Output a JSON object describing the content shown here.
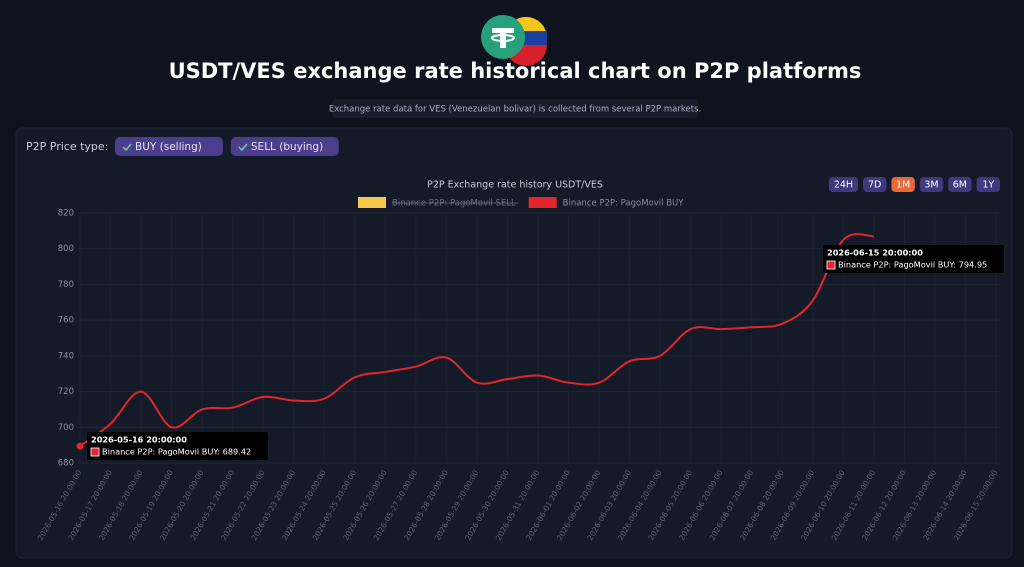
{
  "header": {
    "title": "USDT/VES exchange rate historical chart on P2P platforms",
    "subtitle": "Exchange rate data for VES (Venezuelan bolivar) is collected from several P2P markets."
  },
  "price_type": {
    "label": "P2P Price type:",
    "buttons": [
      "BUY (selling)",
      "SELL (buying)"
    ]
  },
  "ranges": {
    "buttons": [
      "24H",
      "7D",
      "1M",
      "3M",
      "6M",
      "1Y"
    ],
    "active": 2
  },
  "chart_data": {
    "type": "line",
    "title": "P2P Exchange rate history USDT/VES",
    "x": [
      "2026-05-16 20:00:00",
      "2026-05-17 20:00:00",
      "2026-05-18 20:00:00",
      "2026-05-19 20:00:00",
      "2026-05-20 20:00:00",
      "2026-05-21 20:00:00",
      "2026-05-22 20:00:00",
      "2026-05-23 20:00:00",
      "2026-05-24 20:00:00",
      "2026-05-25 20:00:00",
      "2026-05-26 20:00:00",
      "2026-05-27 20:00:00",
      "2026-05-28 20:00:00",
      "2026-05-29 20:00:00",
      "2026-05-30 20:00:00",
      "2026-05-31 20:00:00",
      "2026-06-01 20:00:00",
      "2026-06-02 20:00:00",
      "2026-06-03 20:00:00",
      "2026-06-04 20:00:00",
      "2026-06-05 20:00:00",
      "2026-06-06 20:00:00",
      "2026-06-07 20:00:00",
      "2026-06-08 20:00:00",
      "2026-06-09 20:00:00",
      "2026-06-10 20:00:00",
      "2026-06-11 20:00:00",
      "2026-06-12 20:00:00",
      "2026-06-13 20:00:00",
      "2026-06-14 20:00:00",
      "2026-06-15 20:00:00"
    ],
    "series": [
      {
        "name": "Binance P2P: PagoMovil SELL",
        "color": "#f7c94a",
        "hidden": true
      },
      {
        "name": "Binance P2P: PagoMovil BUY",
        "color": "#e3262e",
        "values": [
          689.42,
          702,
          720,
          700,
          710,
          711,
          717,
          715,
          716,
          728,
          731,
          734,
          739,
          725,
          727,
          729,
          725,
          725,
          737,
          740,
          755,
          755,
          756,
          758,
          771,
          805,
          807,
          null,
          null,
          null,
          794.95
        ]
      }
    ],
    "ylim": [
      680,
      820
    ],
    "yticks": [
      680,
      700,
      720,
      740,
      760,
      780,
      800,
      820
    ],
    "grid": true,
    "tooltips": [
      {
        "date": "2026-05-16 20:00:00",
        "text": "Binance P2P: PagoMovil BUY: 689.42"
      },
      {
        "date": "2026-06-15 20:00:00",
        "text": "Binance P2P: PagoMovil BUY: 794.95"
      }
    ]
  }
}
